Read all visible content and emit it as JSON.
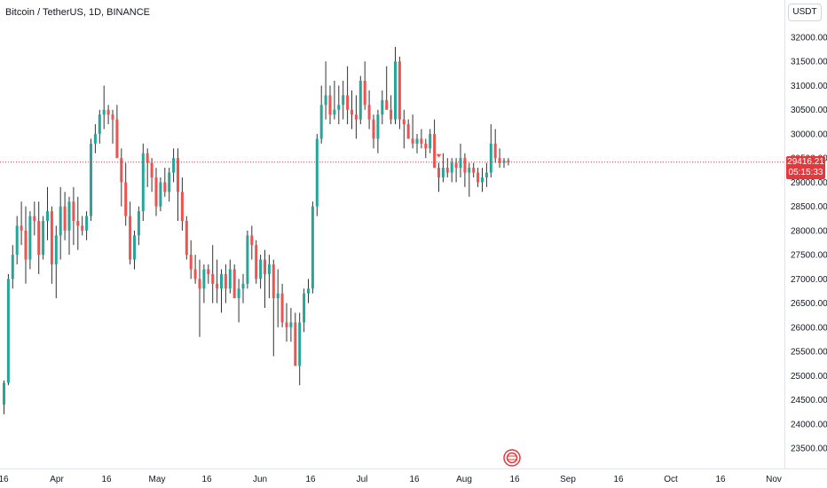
{
  "symbol_title": "Bitcoin / TetherUS, 1D, BINANCE",
  "unit_label": "USDT",
  "last_price": {
    "price": "29416.21",
    "countdown": "05:15:33"
  },
  "colors": {
    "up": "#26a69a",
    "down": "#ef5350",
    "wick": "#333333",
    "last_price_bg": "#e4393c",
    "grid_line": "#e0e3eb"
  },
  "chart_data": {
    "type": "candlestick",
    "y_ticks": [
      "23500.00",
      "24000.00",
      "24500.00",
      "25000.00",
      "25500.00",
      "26000.00",
      "26500.00",
      "27000.00",
      "27500.00",
      "28000.00",
      "28500.00",
      "29000.00",
      "29500.00",
      "30000.00",
      "30500.00",
      "31000.00",
      "31500.00",
      "32000.00"
    ],
    "x_ticks": [
      "16",
      "Apr",
      "16",
      "May",
      "16",
      "Jun",
      "16",
      "Jul",
      "16",
      "Aug",
      "16",
      "Sep",
      "16",
      "Oct",
      "16",
      "Nov"
    ],
    "ylim": [
      23050,
      32250
    ],
    "candles": [
      [
        24400,
        24900,
        24200,
        24850
      ],
      [
        24850,
        27100,
        24800,
        27000
      ],
      [
        27000,
        27700,
        26800,
        27500
      ],
      [
        27500,
        28300,
        27300,
        28100
      ],
      [
        28100,
        28600,
        27700,
        28000
      ],
      [
        28000,
        28500,
        26900,
        27400
      ],
      [
        27400,
        28400,
        27200,
        28300
      ],
      [
        28300,
        28600,
        27900,
        28200
      ],
      [
        28200,
        28600,
        27100,
        27500
      ],
      [
        27500,
        28300,
        27400,
        28200
      ],
      [
        28200,
        28900,
        27800,
        28400
      ],
      [
        28400,
        28500,
        26900,
        27300
      ],
      [
        27300,
        28100,
        26600,
        27900
      ],
      [
        27900,
        28900,
        27400,
        28500
      ],
      [
        28500,
        28800,
        27800,
        28000
      ],
      [
        28000,
        28700,
        27500,
        28600
      ],
      [
        28600,
        28900,
        27700,
        28200
      ],
      [
        28200,
        28700,
        27600,
        28100
      ],
      [
        28100,
        28300,
        27900,
        28000
      ],
      [
        28000,
        28400,
        27800,
        28300
      ],
      [
        28300,
        29900,
        28200,
        29800
      ],
      [
        29800,
        30200,
        29600,
        30000
      ],
      [
        30000,
        30500,
        29800,
        30400
      ],
      [
        30400,
        31000,
        30100,
        30500
      ],
      [
        30500,
        30600,
        30200,
        30400
      ],
      [
        30400,
        30500,
        29800,
        30300
      ],
      [
        30300,
        30600,
        29500,
        29500
      ],
      [
        29500,
        29700,
        28500,
        29000
      ],
      [
        29000,
        29400,
        28100,
        28300
      ],
      [
        28300,
        28600,
        27300,
        27400
      ],
      [
        27400,
        28000,
        27200,
        27900
      ],
      [
        27900,
        28500,
        27700,
        28400
      ],
      [
        28400,
        29800,
        28200,
        29600
      ],
      [
        29600,
        29700,
        28900,
        29400
      ],
      [
        29400,
        29500,
        28800,
        29100
      ],
      [
        29100,
        29300,
        28300,
        28500
      ],
      [
        28500,
        29100,
        28400,
        29000
      ],
      [
        29000,
        29300,
        28700,
        28800
      ],
      [
        28800,
        29300,
        28600,
        29200
      ],
      [
        29200,
        29700,
        29000,
        29500
      ],
      [
        29500,
        29700,
        28200,
        28800
      ],
      [
        28800,
        29100,
        28000,
        28200
      ],
      [
        28200,
        28300,
        27400,
        27500
      ],
      [
        27500,
        27800,
        27000,
        27200
      ],
      [
        27200,
        27500,
        26900,
        27000
      ],
      [
        27000,
        27400,
        25800,
        26800
      ],
      [
        26800,
        27300,
        26500,
        27200
      ],
      [
        27200,
        27300,
        26900,
        27100
      ],
      [
        27100,
        27700,
        26500,
        26900
      ],
      [
        26900,
        27400,
        26500,
        26800
      ],
      [
        26800,
        27200,
        26300,
        27100
      ],
      [
        27100,
        27300,
        26500,
        26800
      ],
      [
        26800,
        27400,
        26700,
        27200
      ],
      [
        27200,
        27300,
        26600,
        26600
      ],
      [
        26600,
        27000,
        26100,
        26800
      ],
      [
        26800,
        27100,
        26500,
        26900
      ],
      [
        26900,
        28000,
        26800,
        27900
      ],
      [
        27900,
        28100,
        27400,
        27700
      ],
      [
        27700,
        27800,
        26900,
        27000
      ],
      [
        27000,
        27500,
        26800,
        27400
      ],
      [
        27400,
        27600,
        26400,
        27100
      ],
      [
        27100,
        27500,
        26600,
        27300
      ],
      [
        27300,
        27400,
        25400,
        26600
      ],
      [
        26600,
        27200,
        26000,
        26700
      ],
      [
        26700,
        26900,
        26000,
        26100
      ],
      [
        26100,
        26500,
        25700,
        26000
      ],
      [
        26000,
        26400,
        25700,
        26100
      ],
      [
        26100,
        26300,
        25200,
        25200
      ],
      [
        25200,
        26300,
        24800,
        26100
      ],
      [
        26100,
        26800,
        25900,
        26700
      ],
      [
        26700,
        27000,
        26500,
        26800
      ],
      [
        26800,
        28600,
        26700,
        28500
      ],
      [
        28500,
        30000,
        28300,
        29900
      ],
      [
        29900,
        31000,
        29800,
        30600
      ],
      [
        30600,
        31500,
        30300,
        30800
      ],
      [
        30800,
        31000,
        30200,
        30400
      ],
      [
        30400,
        31100,
        30300,
        30500
      ],
      [
        30500,
        31000,
        30200,
        30600
      ],
      [
        30600,
        31100,
        30300,
        30800
      ],
      [
        30800,
        31400,
        30200,
        30500
      ],
      [
        30500,
        30900,
        30100,
        30400
      ],
      [
        30400,
        30800,
        29900,
        30300
      ],
      [
        30300,
        31200,
        30200,
        31100
      ],
      [
        31100,
        31500,
        30500,
        30600
      ],
      [
        30600,
        30900,
        30100,
        30300
      ],
      [
        30300,
        30400,
        29700,
        29900
      ],
      [
        29900,
        30500,
        29600,
        30400
      ],
      [
        30400,
        30900,
        30200,
        30700
      ],
      [
        30700,
        31400,
        30500,
        30500
      ],
      [
        30500,
        30800,
        30200,
        30300
      ],
      [
        30300,
        31800,
        30200,
        31500
      ],
      [
        31500,
        31600,
        30100,
        30300
      ],
      [
        30300,
        30500,
        29700,
        30200
      ],
      [
        30200,
        30300,
        29900,
        29900
      ],
      [
        29900,
        30400,
        29700,
        29800
      ],
      [
        29800,
        30000,
        29600,
        29900
      ],
      [
        29900,
        30100,
        29700,
        29800
      ],
      [
        29800,
        29900,
        29500,
        29700
      ],
      [
        29700,
        30100,
        29600,
        30000
      ],
      [
        30000,
        30300,
        29300,
        29300
      ],
      [
        29300,
        29400,
        28800,
        29100
      ],
      [
        29100,
        29600,
        29000,
        29300
      ],
      [
        29300,
        29500,
        29100,
        29200
      ],
      [
        29200,
        29500,
        29000,
        29400
      ],
      [
        29400,
        29500,
        29000,
        29300
      ],
      [
        29300,
        29800,
        29100,
        29500
      ],
      [
        29500,
        29600,
        28900,
        29200
      ],
      [
        29200,
        29400,
        28700,
        29300
      ],
      [
        29300,
        29400,
        29100,
        29200
      ],
      [
        29200,
        29300,
        28900,
        29000
      ],
      [
        29000,
        29300,
        28800,
        29100
      ],
      [
        29100,
        29400,
        28900,
        29200
      ],
      [
        29200,
        30200,
        29100,
        29800
      ],
      [
        29800,
        30100,
        29400,
        29500
      ],
      [
        29500,
        29700,
        29300,
        29400
      ],
      [
        29400,
        29500,
        29300,
        29450
      ],
      [
        29450,
        29500,
        29350,
        29416
      ]
    ],
    "marker_index": 100
  }
}
